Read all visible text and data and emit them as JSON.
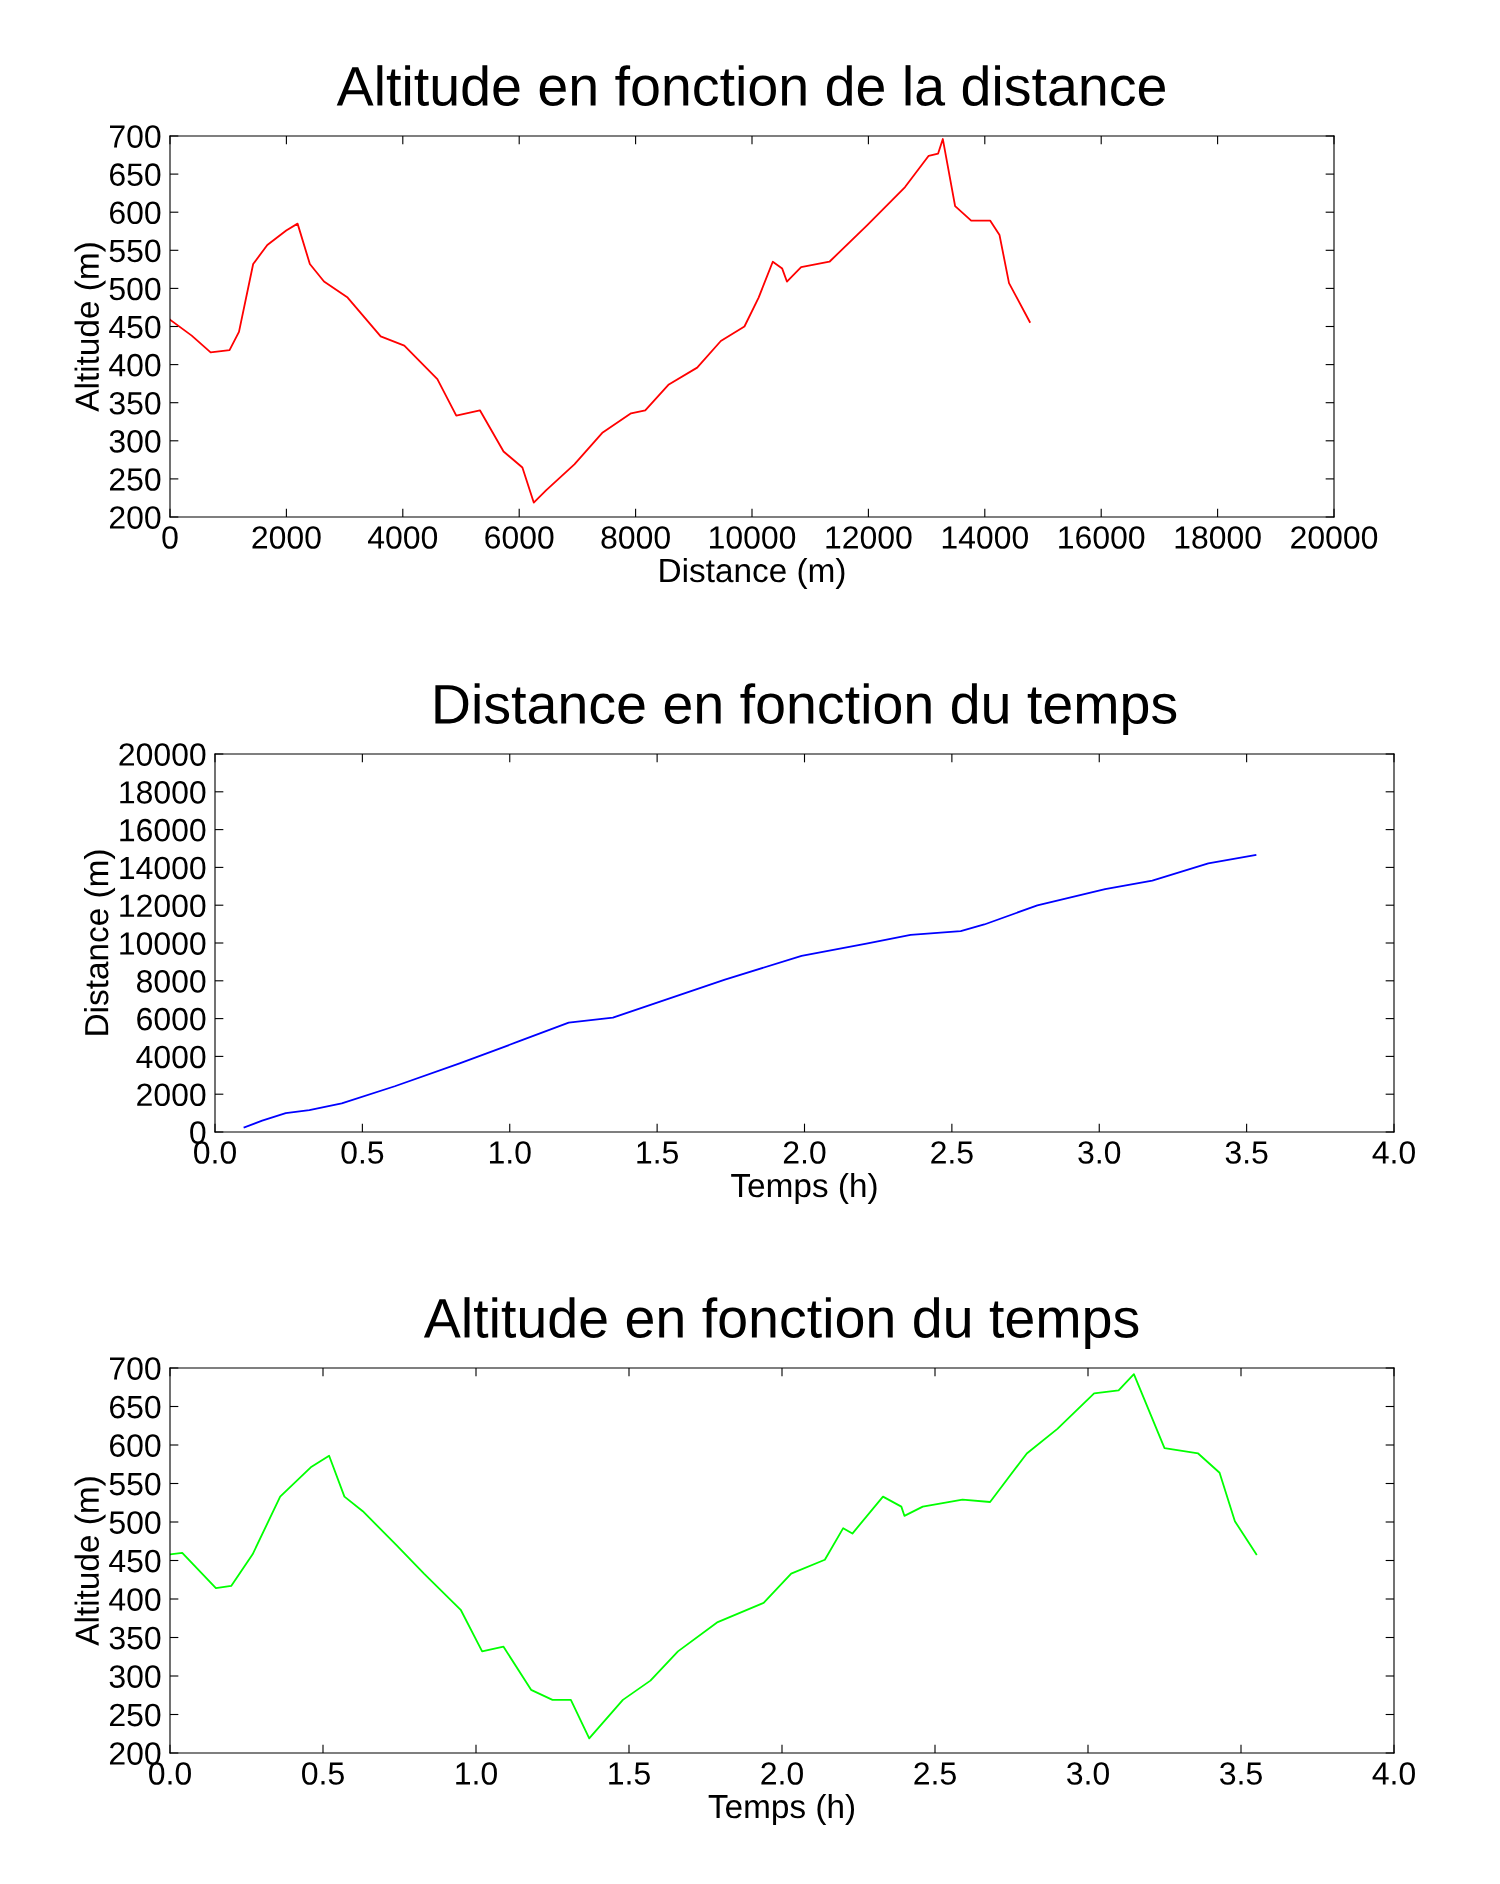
{
  "chart_data": [
    {
      "type": "line",
      "title": "Altitude en fonction de la distance",
      "xlabel": "Distance (m)",
      "ylabel": "Altitude (m)",
      "xlim": [
        0,
        20000
      ],
      "xticks": [
        0,
        2000,
        4000,
        6000,
        8000,
        10000,
        12000,
        14000,
        16000,
        18000,
        20000
      ],
      "ylim": [
        200,
        700
      ],
      "yticks": [
        200,
        250,
        300,
        350,
        400,
        450,
        500,
        550,
        600,
        650,
        700
      ],
      "grid": false,
      "marker": "none",
      "line_style": "solid",
      "series": [
        {
          "color": "#ff0000",
          "x": [
            0,
            373,
            698,
            1023,
            1185,
            1429,
            1672,
            1997,
            2192,
            2403,
            2646,
            3052,
            3620,
            4026,
            4594,
            4919,
            5325,
            5731,
            6055,
            6250,
            6461,
            6948,
            7435,
            7922,
            8166,
            8571,
            9058,
            9464,
            9870,
            10114,
            10357,
            10519,
            10600,
            10844,
            11331,
            11981,
            12630,
            13036,
            13198,
            13279,
            13490,
            13766,
            14091,
            14253,
            14416,
            14773
          ],
          "values": [
            459,
            438,
            416,
            419,
            443,
            532,
            557,
            576,
            585,
            532,
            509,
            488,
            437,
            425,
            381,
            333,
            340,
            286,
            265,
            219,
            235,
            269,
            311,
            336,
            340,
            374,
            396,
            431,
            450,
            488,
            535,
            526,
            509,
            528,
            535,
            583,
            633,
            674,
            677,
            696,
            608,
            589,
            589,
            570,
            507,
            456
          ]
        }
      ]
    },
    {
      "type": "line",
      "title": "Distance en fonction du temps",
      "xlabel": "Temps (h)",
      "ylabel": "Distance (m)",
      "xlim": [
        0,
        4
      ],
      "xticks": [
        {
          "value": 0,
          "label": "0.0"
        },
        0.5,
        {
          "value": 1,
          "label": "1.0"
        },
        1.5,
        {
          "value": 2,
          "label": "2.0"
        },
        2.5,
        {
          "value": 3,
          "label": "3.0"
        },
        3.5,
        {
          "value": 4,
          "label": "4.0"
        }
      ],
      "ylim": [
        0,
        20000
      ],
      "yticks": [
        0,
        2000,
        4000,
        6000,
        8000,
        10000,
        12000,
        14000,
        16000,
        18000,
        20000
      ],
      "grid": false,
      "marker": "none",
      "line_style": "solid",
      "series": [
        {
          "color": "#0000ff",
          "x": [
            0.1,
            0.16,
            0.24,
            0.32,
            0.43,
            0.61,
            0.83,
            1.03,
            1.2,
            1.35,
            1.51,
            1.73,
            1.99,
            2.21,
            2.36,
            2.53,
            2.61,
            2.79,
            3.02,
            3.18,
            3.37,
            3.53
          ],
          "values": [
            250,
            600,
            1000,
            1160,
            1510,
            2420,
            3630,
            4790,
            5790,
            6050,
            6900,
            8060,
            9320,
            9970,
            10430,
            10630,
            10980,
            11990,
            12850,
            13300,
            14210,
            14660
          ]
        }
      ]
    },
    {
      "type": "line",
      "title": "Altitude en fonction du temps",
      "xlabel": "Temps (h)",
      "ylabel": "Altitude (m)",
      "xlim": [
        0,
        4
      ],
      "xticks": [
        {
          "value": 0,
          "label": "0.0"
        },
        0.5,
        {
          "value": 1,
          "label": "1.0"
        },
        1.5,
        {
          "value": 2,
          "label": "2.0"
        },
        2.5,
        {
          "value": 3,
          "label": "3.0"
        },
        3.5,
        {
          "value": 4,
          "label": "4.0"
        }
      ],
      "ylim": [
        200,
        700
      ],
      "yticks": [
        200,
        250,
        300,
        350,
        400,
        450,
        500,
        550,
        600,
        650,
        700
      ],
      "grid": false,
      "marker": "none",
      "line_style": "solid",
      "series": [
        {
          "color": "#00ff00",
          "x": [
            0,
            0.04,
            0.15,
            0.2,
            0.27,
            0.36,
            0.46,
            0.52,
            0.57,
            0.63,
            0.74,
            0.83,
            0.95,
            1.02,
            1.09,
            1.18,
            1.25,
            1.31,
            1.37,
            1.48,
            1.57,
            1.66,
            1.79,
            1.94,
            2.03,
            2.14,
            2.2,
            2.23,
            2.33,
            2.39,
            2.4,
            2.46,
            2.59,
            2.68,
            2.8,
            2.9,
            3.02,
            3.1,
            3.15,
            3.25,
            3.36,
            3.43,
            3.48,
            3.55
          ],
          "values": [
            458,
            460,
            414,
            417,
            458,
            533,
            571,
            586,
            533,
            514,
            470,
            433,
            386,
            332,
            338,
            282,
            269,
            269,
            219,
            269,
            294,
            332,
            370,
            395,
            433,
            451,
            492,
            485,
            533,
            520,
            508,
            520,
            529,
            526,
            589,
            621,
            667,
            671,
            692,
            596,
            589,
            564,
            501,
            458
          ]
        }
      ]
    }
  ]
}
